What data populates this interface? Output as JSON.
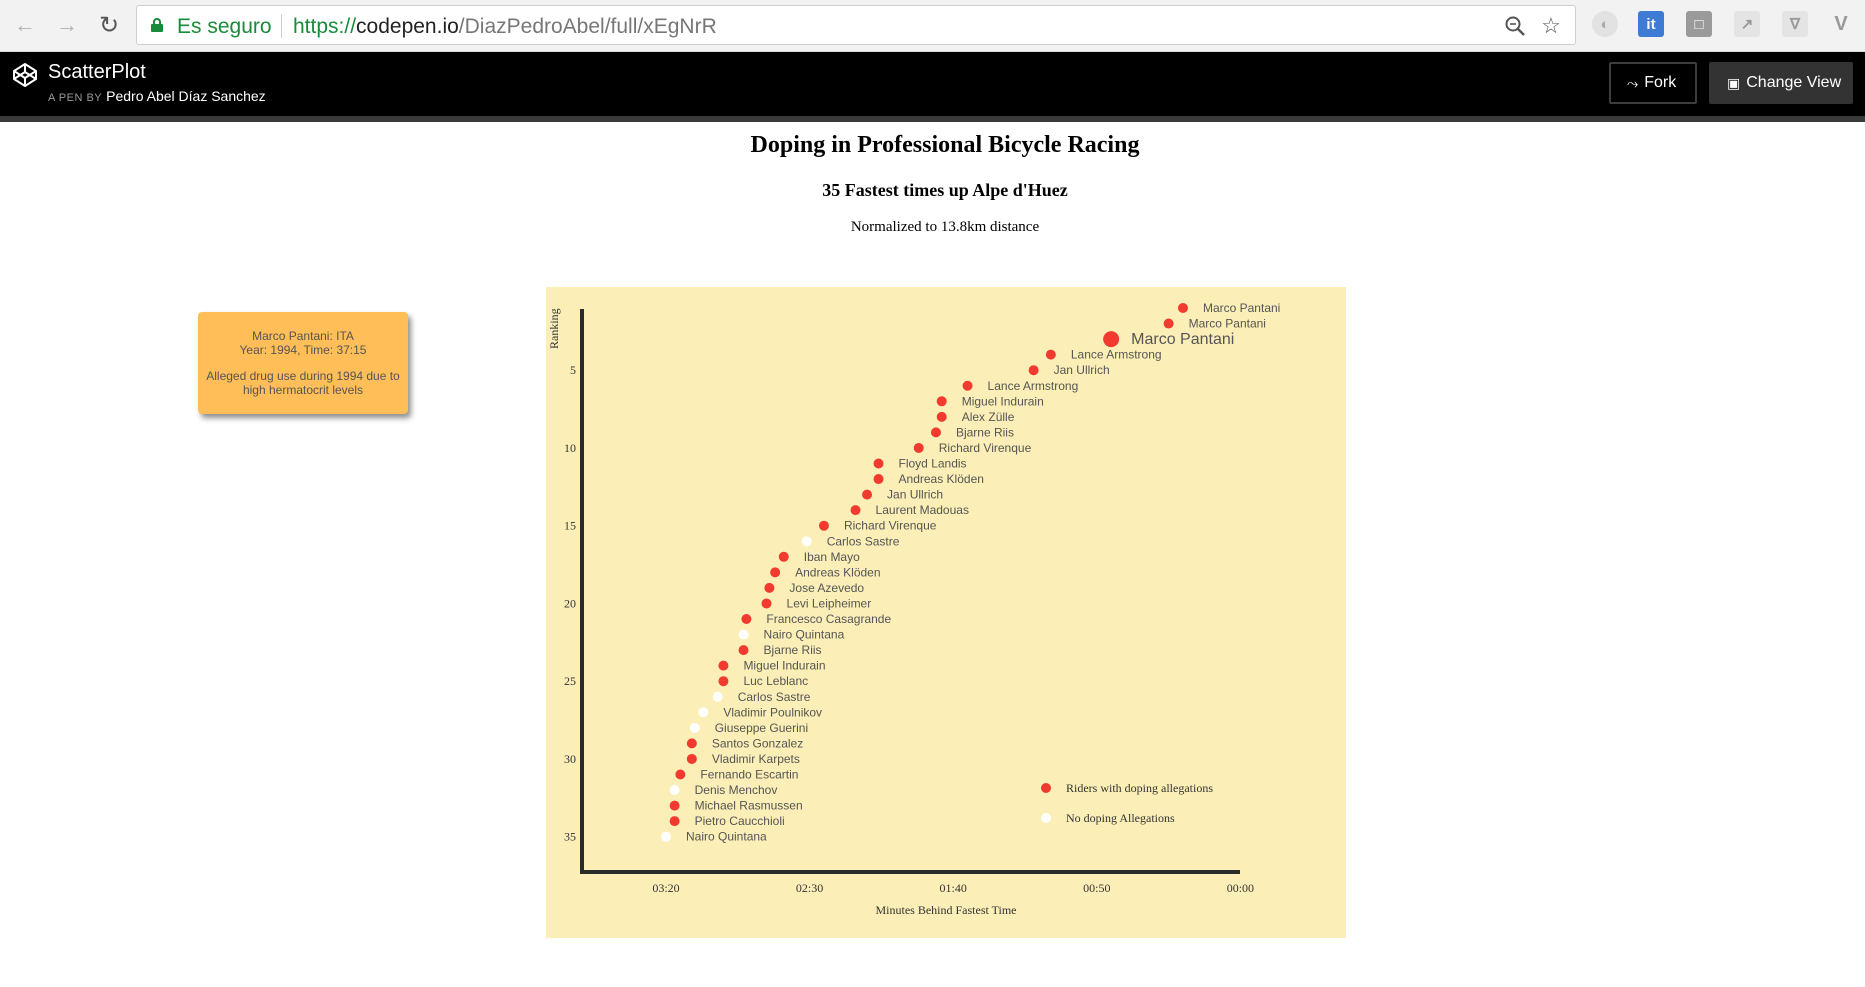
{
  "browser": {
    "secure_label": "Es seguro",
    "url_scheme": "https://",
    "url_host": "codepen.io",
    "url_path": "/DiazPedroAbel/full/xEgNrR"
  },
  "codepen": {
    "pen_title": "ScatterPlot",
    "byline_label": "A PEN BY",
    "author": "Pedro Abel Díaz Sanchez",
    "fork_label": "Fork",
    "change_view_label": "Change View"
  },
  "page": {
    "title": "Doping in Professional Bicycle Racing",
    "subtitle": "35 Fastest times up Alpe d'Huez",
    "note": "Normalized to 13.8km distance"
  },
  "tooltip": {
    "line1": "Marco Pantani: ITA",
    "line2": "Year: 1994, Time: 37:15",
    "line3": "Alleged drug use during 1994 due to high hermatocrit levels"
  },
  "colors": {
    "doping": "#f23a2f",
    "clean": "#ffffff",
    "chart_bg": "#fbefb7",
    "tooltip_bg": "#ffbe57",
    "axis": "#2b2b2b"
  },
  "chart_data": {
    "type": "scatter",
    "xlabel": "Minutes Behind Fastest Time",
    "ylabel": "Ranking",
    "x_unit": "seconds behind fastest",
    "x_reversed": true,
    "xlim": [
      0,
      220
    ],
    "ylim": [
      1,
      36
    ],
    "x_ticks": [
      {
        "value": 200,
        "label": "03:20"
      },
      {
        "value": 150,
        "label": "02:30"
      },
      {
        "value": 100,
        "label": "01:40"
      },
      {
        "value": 50,
        "label": "00:50"
      },
      {
        "value": 0,
        "label": "00:00"
      }
    ],
    "y_ticks": [
      5,
      10,
      15,
      20,
      25,
      30,
      35
    ],
    "highlighted_rank": 3,
    "legend": [
      {
        "label": "Riders with doping allegations",
        "doping": true
      },
      {
        "label": "No doping Allegations",
        "doping": false
      }
    ],
    "legend_position": "bottom-right",
    "points": [
      {
        "rank": 1,
        "name": "Marco Pantani",
        "x": 20,
        "doping": true
      },
      {
        "rank": 2,
        "name": "Marco Pantani",
        "x": 25,
        "doping": true
      },
      {
        "rank": 3,
        "name": "Marco Pantani",
        "x": 45,
        "doping": true
      },
      {
        "rank": 4,
        "name": "Lance Armstrong",
        "x": 66,
        "doping": true
      },
      {
        "rank": 5,
        "name": "Jan Ullrich",
        "x": 72,
        "doping": true
      },
      {
        "rank": 6,
        "name": "Lance Armstrong",
        "x": 95,
        "doping": true
      },
      {
        "rank": 7,
        "name": "Miguel Indurain",
        "x": 104,
        "doping": true
      },
      {
        "rank": 8,
        "name": "Alex Zülle",
        "x": 104,
        "doping": true
      },
      {
        "rank": 9,
        "name": "Bjarne Riis",
        "x": 106,
        "doping": true
      },
      {
        "rank": 10,
        "name": "Richard Virenque",
        "x": 112,
        "doping": true
      },
      {
        "rank": 11,
        "name": "Floyd Landis",
        "x": 126,
        "doping": true
      },
      {
        "rank": 12,
        "name": "Andreas Klöden",
        "x": 126,
        "doping": true
      },
      {
        "rank": 13,
        "name": "Jan Ullrich",
        "x": 130,
        "doping": true
      },
      {
        "rank": 14,
        "name": "Laurent Madouas",
        "x": 134,
        "doping": true
      },
      {
        "rank": 15,
        "name": "Richard Virenque",
        "x": 145,
        "doping": true
      },
      {
        "rank": 16,
        "name": "Carlos Sastre",
        "x": 151,
        "doping": false
      },
      {
        "rank": 17,
        "name": "Iban Mayo",
        "x": 159,
        "doping": true
      },
      {
        "rank": 18,
        "name": "Andreas Klöden",
        "x": 162,
        "doping": true
      },
      {
        "rank": 19,
        "name": "Jose Azevedo",
        "x": 164,
        "doping": true
      },
      {
        "rank": 20,
        "name": "Levi Leipheimer",
        "x": 165,
        "doping": true
      },
      {
        "rank": 21,
        "name": "Francesco Casagrande",
        "x": 172,
        "doping": true
      },
      {
        "rank": 22,
        "name": "Nairo Quintana",
        "x": 173,
        "doping": false
      },
      {
        "rank": 23,
        "name": "Bjarne Riis",
        "x": 173,
        "doping": true
      },
      {
        "rank": 24,
        "name": "Miguel Indurain",
        "x": 180,
        "doping": true
      },
      {
        "rank": 25,
        "name": "Luc Leblanc",
        "x": 180,
        "doping": true
      },
      {
        "rank": 26,
        "name": "Carlos Sastre",
        "x": 182,
        "doping": false
      },
      {
        "rank": 27,
        "name": "Vladimir Poulnikov",
        "x": 187,
        "doping": false
      },
      {
        "rank": 28,
        "name": "Giuseppe Guerini",
        "x": 190,
        "doping": false
      },
      {
        "rank": 29,
        "name": "Santos Gonzalez",
        "x": 191,
        "doping": true
      },
      {
        "rank": 30,
        "name": "Vladimir Karpets",
        "x": 191,
        "doping": true
      },
      {
        "rank": 31,
        "name": "Fernando Escartin",
        "x": 195,
        "doping": true
      },
      {
        "rank": 32,
        "name": "Denis Menchov",
        "x": 197,
        "doping": false
      },
      {
        "rank": 33,
        "name": "Michael Rasmussen",
        "x": 197,
        "doping": true
      },
      {
        "rank": 34,
        "name": "Pietro Caucchioli",
        "x": 197,
        "doping": true
      },
      {
        "rank": 35,
        "name": "Nairo Quintana",
        "x": 200,
        "doping": false
      }
    ]
  }
}
